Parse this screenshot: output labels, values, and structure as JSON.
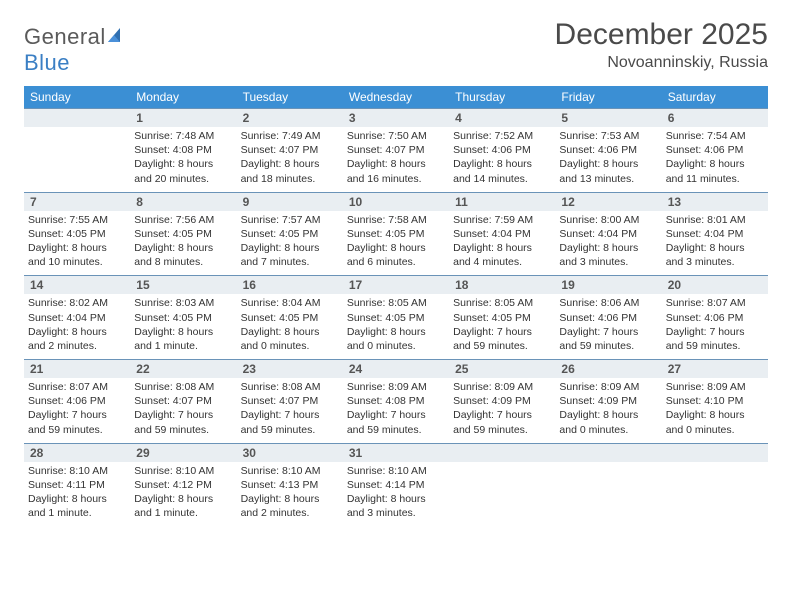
{
  "brand": {
    "name_a": "General",
    "name_b": "Blue"
  },
  "title": "December 2025",
  "location": "Novoanninskiy, Russia",
  "colors": {
    "header_bg": "#3b8fd4",
    "header_fg": "#ffffff",
    "rule": "#6a93b8",
    "daynum_bg": "#e9eef2",
    "text": "#333333",
    "title_color": "#4a4a4a"
  },
  "day_headers": [
    "Sunday",
    "Monday",
    "Tuesday",
    "Wednesday",
    "Thursday",
    "Friday",
    "Saturday"
  ],
  "weeks": [
    [
      null,
      {
        "n": "1",
        "sr": "Sunrise: 7:48 AM",
        "ss": "Sunset: 4:08 PM",
        "d1": "Daylight: 8 hours",
        "d2": "and 20 minutes."
      },
      {
        "n": "2",
        "sr": "Sunrise: 7:49 AM",
        "ss": "Sunset: 4:07 PM",
        "d1": "Daylight: 8 hours",
        "d2": "and 18 minutes."
      },
      {
        "n": "3",
        "sr": "Sunrise: 7:50 AM",
        "ss": "Sunset: 4:07 PM",
        "d1": "Daylight: 8 hours",
        "d2": "and 16 minutes."
      },
      {
        "n": "4",
        "sr": "Sunrise: 7:52 AM",
        "ss": "Sunset: 4:06 PM",
        "d1": "Daylight: 8 hours",
        "d2": "and 14 minutes."
      },
      {
        "n": "5",
        "sr": "Sunrise: 7:53 AM",
        "ss": "Sunset: 4:06 PM",
        "d1": "Daylight: 8 hours",
        "d2": "and 13 minutes."
      },
      {
        "n": "6",
        "sr": "Sunrise: 7:54 AM",
        "ss": "Sunset: 4:06 PM",
        "d1": "Daylight: 8 hours",
        "d2": "and 11 minutes."
      }
    ],
    [
      {
        "n": "7",
        "sr": "Sunrise: 7:55 AM",
        "ss": "Sunset: 4:05 PM",
        "d1": "Daylight: 8 hours",
        "d2": "and 10 minutes."
      },
      {
        "n": "8",
        "sr": "Sunrise: 7:56 AM",
        "ss": "Sunset: 4:05 PM",
        "d1": "Daylight: 8 hours",
        "d2": "and 8 minutes."
      },
      {
        "n": "9",
        "sr": "Sunrise: 7:57 AM",
        "ss": "Sunset: 4:05 PM",
        "d1": "Daylight: 8 hours",
        "d2": "and 7 minutes."
      },
      {
        "n": "10",
        "sr": "Sunrise: 7:58 AM",
        "ss": "Sunset: 4:05 PM",
        "d1": "Daylight: 8 hours",
        "d2": "and 6 minutes."
      },
      {
        "n": "11",
        "sr": "Sunrise: 7:59 AM",
        "ss": "Sunset: 4:04 PM",
        "d1": "Daylight: 8 hours",
        "d2": "and 4 minutes."
      },
      {
        "n": "12",
        "sr": "Sunrise: 8:00 AM",
        "ss": "Sunset: 4:04 PM",
        "d1": "Daylight: 8 hours",
        "d2": "and 3 minutes."
      },
      {
        "n": "13",
        "sr": "Sunrise: 8:01 AM",
        "ss": "Sunset: 4:04 PM",
        "d1": "Daylight: 8 hours",
        "d2": "and 3 minutes."
      }
    ],
    [
      {
        "n": "14",
        "sr": "Sunrise: 8:02 AM",
        "ss": "Sunset: 4:04 PM",
        "d1": "Daylight: 8 hours",
        "d2": "and 2 minutes."
      },
      {
        "n": "15",
        "sr": "Sunrise: 8:03 AM",
        "ss": "Sunset: 4:05 PM",
        "d1": "Daylight: 8 hours",
        "d2": "and 1 minute."
      },
      {
        "n": "16",
        "sr": "Sunrise: 8:04 AM",
        "ss": "Sunset: 4:05 PM",
        "d1": "Daylight: 8 hours",
        "d2": "and 0 minutes."
      },
      {
        "n": "17",
        "sr": "Sunrise: 8:05 AM",
        "ss": "Sunset: 4:05 PM",
        "d1": "Daylight: 8 hours",
        "d2": "and 0 minutes."
      },
      {
        "n": "18",
        "sr": "Sunrise: 8:05 AM",
        "ss": "Sunset: 4:05 PM",
        "d1": "Daylight: 7 hours",
        "d2": "and 59 minutes."
      },
      {
        "n": "19",
        "sr": "Sunrise: 8:06 AM",
        "ss": "Sunset: 4:06 PM",
        "d1": "Daylight: 7 hours",
        "d2": "and 59 minutes."
      },
      {
        "n": "20",
        "sr": "Sunrise: 8:07 AM",
        "ss": "Sunset: 4:06 PM",
        "d1": "Daylight: 7 hours",
        "d2": "and 59 minutes."
      }
    ],
    [
      {
        "n": "21",
        "sr": "Sunrise: 8:07 AM",
        "ss": "Sunset: 4:06 PM",
        "d1": "Daylight: 7 hours",
        "d2": "and 59 minutes."
      },
      {
        "n": "22",
        "sr": "Sunrise: 8:08 AM",
        "ss": "Sunset: 4:07 PM",
        "d1": "Daylight: 7 hours",
        "d2": "and 59 minutes."
      },
      {
        "n": "23",
        "sr": "Sunrise: 8:08 AM",
        "ss": "Sunset: 4:07 PM",
        "d1": "Daylight: 7 hours",
        "d2": "and 59 minutes."
      },
      {
        "n": "24",
        "sr": "Sunrise: 8:09 AM",
        "ss": "Sunset: 4:08 PM",
        "d1": "Daylight: 7 hours",
        "d2": "and 59 minutes."
      },
      {
        "n": "25",
        "sr": "Sunrise: 8:09 AM",
        "ss": "Sunset: 4:09 PM",
        "d1": "Daylight: 7 hours",
        "d2": "and 59 minutes."
      },
      {
        "n": "26",
        "sr": "Sunrise: 8:09 AM",
        "ss": "Sunset: 4:09 PM",
        "d1": "Daylight: 8 hours",
        "d2": "and 0 minutes."
      },
      {
        "n": "27",
        "sr": "Sunrise: 8:09 AM",
        "ss": "Sunset: 4:10 PM",
        "d1": "Daylight: 8 hours",
        "d2": "and 0 minutes."
      }
    ],
    [
      {
        "n": "28",
        "sr": "Sunrise: 8:10 AM",
        "ss": "Sunset: 4:11 PM",
        "d1": "Daylight: 8 hours",
        "d2": "and 1 minute."
      },
      {
        "n": "29",
        "sr": "Sunrise: 8:10 AM",
        "ss": "Sunset: 4:12 PM",
        "d1": "Daylight: 8 hours",
        "d2": "and 1 minute."
      },
      {
        "n": "30",
        "sr": "Sunrise: 8:10 AM",
        "ss": "Sunset: 4:13 PM",
        "d1": "Daylight: 8 hours",
        "d2": "and 2 minutes."
      },
      {
        "n": "31",
        "sr": "Sunrise: 8:10 AM",
        "ss": "Sunset: 4:14 PM",
        "d1": "Daylight: 8 hours",
        "d2": "and 3 minutes."
      },
      null,
      null,
      null
    ]
  ]
}
